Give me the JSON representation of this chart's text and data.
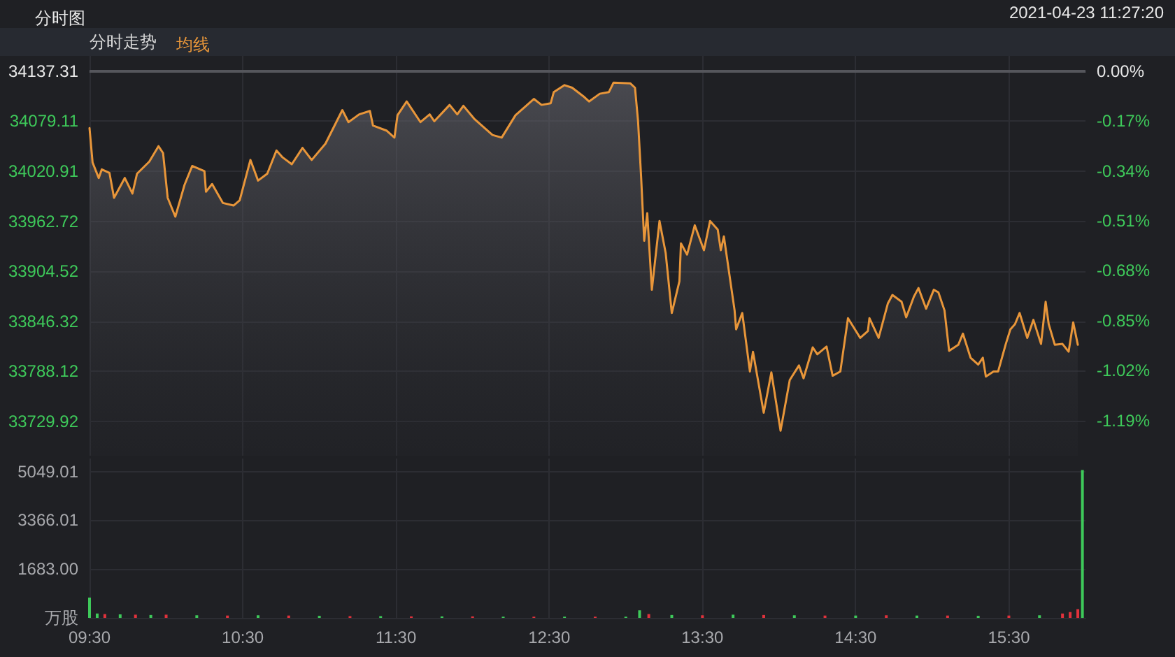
{
  "chart_data": [
    {
      "type": "area",
      "title": "分时图",
      "annotations": [
        "2021-04-23 11:27:20",
        "分时走势"
      ],
      "legend": "top left",
      "grid": true,
      "tick_labels": "y",
      "xlim": [
        9.5,
        16
      ],
      "xticks": [
        9.5,
        10.5,
        11.5,
        12.5,
        13.5,
        14.5,
        15.5
      ],
      "ylim": [
        33690,
        34155
      ],
      "yticks": [
        34137.31,
        34079.11,
        34020.91,
        33962.72,
        33904.52,
        33846.32,
        33788.12,
        33729.92
      ],
      "y2lim": [
        -1.31,
        0.052
      ],
      "y2ticks": [
        {
          "value": 0,
          "label": "0.00%"
        },
        {
          "value": -0.17,
          "label": "-0.17%"
        },
        {
          "value": -0.34,
          "label": "-0.34%"
        },
        {
          "value": -0.51,
          "label": "-0.51%"
        },
        {
          "value": -0.68,
          "label": "-0.68%"
        },
        {
          "value": -0.85,
          "label": "-0.85%"
        },
        {
          "value": -1.02,
          "label": "-1.02%"
        },
        {
          "value": -1.19,
          "label": "-1.19%"
        }
      ],
      "ref_lines": [
        {
          "axis": "y",
          "value": 34137.31,
          "label": null,
          "color": "#55565c",
          "line_style": "solid"
        }
      ],
      "series": [
        {
          "name": "均线",
          "color": "#e8963a",
          "x": [
            9.5,
            9.52,
            9.56,
            9.58,
            9.63,
            9.66,
            9.73,
            9.78,
            9.81,
            9.89,
            9.95,
            9.98,
            10.01,
            10.06,
            10.12,
            10.17,
            10.25,
            10.26,
            10.3,
            10.37,
            10.44,
            10.48,
            10.55,
            10.6,
            10.66,
            10.72,
            10.76,
            10.82,
            10.89,
            10.95,
            11.04,
            11.15,
            11.19,
            11.26,
            11.33,
            11.35,
            11.44,
            11.49,
            11.51,
            11.57,
            11.66,
            11.72,
            11.75,
            11.85,
            11.9,
            11.94,
            12.01,
            12.13,
            12.19,
            12.28,
            12.4,
            12.45,
            12.51,
            12.53,
            12.6,
            12.65,
            12.73,
            12.76,
            12.83,
            12.89,
            12.92,
            13.03,
            13.06,
            13.08,
            13.1,
            13.12,
            13.14,
            13.17,
            13.22,
            13.26,
            13.3,
            13.35,
            13.36,
            13.4,
            13.45,
            13.51,
            13.55,
            13.6,
            13.62,
            13.64,
            13.71,
            13.72,
            13.76,
            13.81,
            13.83,
            13.9,
            13.95,
            14.01,
            14.07,
            14.13,
            14.16,
            14.22,
            14.25,
            14.31,
            14.35,
            14.4,
            14.45,
            14.53,
            14.58,
            14.59,
            14.65,
            14.71,
            14.74,
            14.8,
            14.83,
            14.88,
            14.91,
            14.96,
            15.01,
            15.04,
            15.08,
            15.11,
            15.17,
            15.2,
            15.25,
            15.3,
            15.33,
            15.35,
            15.4,
            15.43,
            15.48,
            15.51,
            15.54,
            15.57,
            15.62,
            15.66,
            15.71,
            15.74,
            15.76,
            15.8,
            15.85,
            15.89,
            15.92,
            15.95
          ],
          "values": [
            34071,
            34031,
            34013,
            34023,
            34019,
            33990,
            34013,
            33995,
            34018,
            34032,
            34050,
            34042,
            33990,
            33968,
            34005,
            34027,
            34021,
            33997,
            34006,
            33984,
            33981,
            33987,
            34034,
            34010,
            34018,
            34045,
            34037,
            34029,
            34048,
            34034,
            34053,
            34092,
            34078,
            34087,
            34091,
            34074,
            34068,
            34060,
            34086,
            34102,
            34078,
            34087,
            34079,
            34098,
            34087,
            34097,
            34082,
            34063,
            34060,
            34086,
            34105,
            34098,
            34100,
            34113,
            34121,
            34118,
            34107,
            34102,
            34111,
            34113,
            34124,
            34123,
            34118,
            34079,
            34014,
            33940,
            33972,
            33883,
            33963,
            33926,
            33856,
            33893,
            33937,
            33924,
            33958,
            33929,
            33963,
            33953,
            33929,
            33945,
            33859,
            33837,
            33856,
            33788,
            33811,
            33740,
            33787,
            33719,
            33778,
            33795,
            33780,
            33816,
            33808,
            33817,
            33783,
            33788,
            33850,
            33827,
            33835,
            33850,
            33827,
            33867,
            33877,
            33869,
            33851,
            33875,
            33885,
            33861,
            33883,
            33880,
            33859,
            33812,
            33819,
            33832,
            33804,
            33796,
            33804,
            33782,
            33788,
            33788,
            33820,
            33837,
            33843,
            33856,
            33827,
            33848,
            33820,
            33869,
            33843,
            33819,
            33820,
            33811,
            33845,
            33819
          ]
        }
      ]
    },
    {
      "type": "bar",
      "grid": true,
      "xlim": [
        9.5,
        16
      ],
      "xticks": [
        {
          "value": 9.5,
          "label": "09:30"
        },
        {
          "value": 10.5,
          "label": "10:30"
        },
        {
          "value": 11.5,
          "label": "11:30"
        },
        {
          "value": 12.5,
          "label": "12:30"
        },
        {
          "value": 13.5,
          "label": "13:30"
        },
        {
          "value": 14.5,
          "label": "14:30"
        },
        {
          "value": 15.5,
          "label": "15:30"
        }
      ],
      "ylim": [
        0,
        5500
      ],
      "yticks": [
        {
          "value": 0,
          "label": "万股"
        },
        {
          "value": 1683,
          "label": "1683.00"
        },
        3366.01,
        5049.01
      ],
      "x": [
        9.5,
        9.55,
        9.6,
        9.7,
        9.8,
        9.9,
        10.0,
        10.2,
        10.4,
        10.6,
        10.8,
        11.0,
        11.2,
        11.4,
        11.6,
        11.8,
        12.0,
        12.2,
        12.4,
        12.6,
        12.8,
        13.0,
        13.09,
        13.15,
        13.3,
        13.5,
        13.7,
        13.9,
        14.1,
        14.3,
        14.5,
        14.7,
        14.9,
        15.1,
        15.3,
        15.5,
        15.7,
        15.85,
        15.9,
        15.95,
        15.98
      ],
      "values": [
        700,
        150,
        130,
        120,
        110,
        100,
        110,
        90,
        80,
        90,
        80,
        70,
        60,
        60,
        50,
        50,
        50,
        40,
        40,
        40,
        40,
        40,
        260,
        130,
        100,
        90,
        110,
        100,
        90,
        80,
        80,
        90,
        80,
        80,
        70,
        80,
        90,
        150,
        200,
        300,
        5100
      ],
      "colors": [
        "#3ec95a",
        "#3ec95a",
        "#e0323c",
        "#3ec95a",
        "#e0323c",
        "#3ec95a",
        "#e0323c",
        "#3ec95a",
        "#e0323c",
        "#3ec95a",
        "#e0323c",
        "#3ec95a",
        "#e0323c",
        "#3ec95a",
        "#e0323c",
        "#3ec95a",
        "#e0323c",
        "#3ec95a",
        "#e0323c",
        "#3ec95a",
        "#e0323c",
        "#3ec95a",
        "#3ec95a",
        "#e0323c",
        "#3ec95a",
        "#e0323c",
        "#3ec95a",
        "#e0323c",
        "#3ec95a",
        "#e0323c",
        "#3ec95a",
        "#e0323c",
        "#3ec95a",
        "#e0323c",
        "#3ec95a",
        "#e0323c",
        "#3ec95a",
        "#e0323c",
        "#e0323c",
        "#e0323c",
        "#3ec95a"
      ]
    }
  ]
}
